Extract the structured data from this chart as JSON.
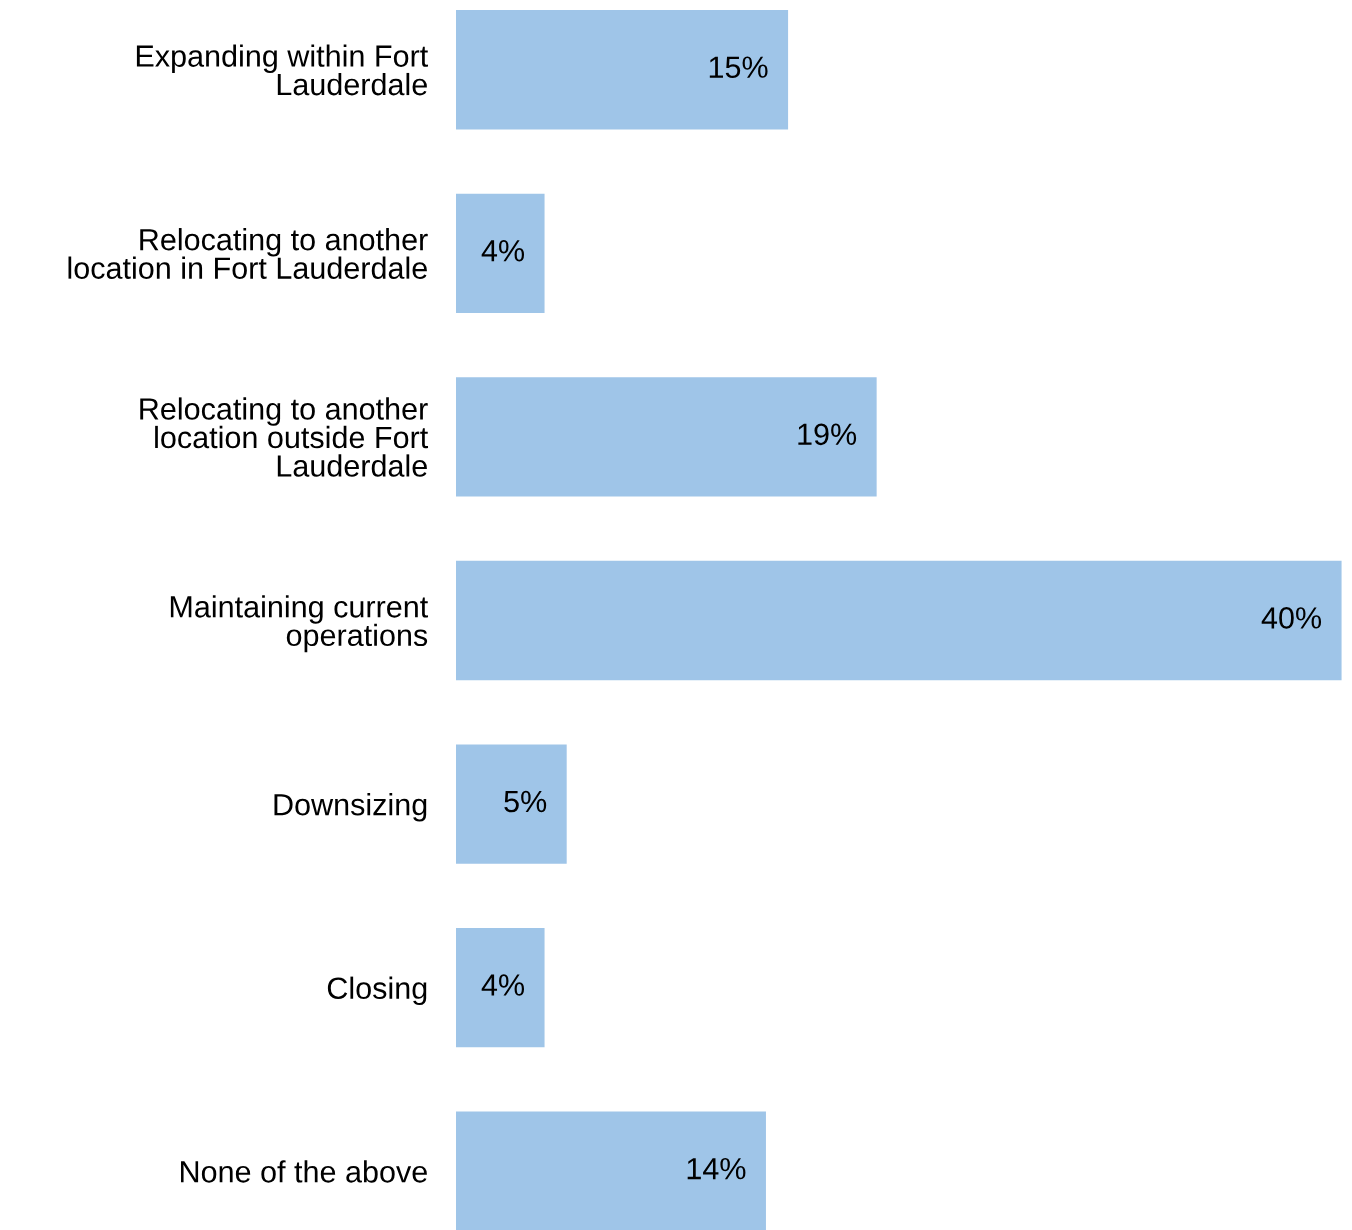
{
  "chart_data": {
    "type": "bar",
    "orientation": "horizontal",
    "categories": [
      "Expanding within Fort\nLauderdale",
      "Relocating to another\nlocation in Fort Lauderdale",
      "Relocating to another\nlocation outside Fort\nLauderdale",
      "Maintaining current\noperations",
      "Downsizing",
      "Closing",
      "None of the above"
    ],
    "values": [
      15,
      4,
      19,
      40,
      5,
      4,
      14
    ],
    "value_labels": [
      "15%",
      "4%",
      "19%",
      "40%",
      "5%",
      "4%",
      "14%"
    ],
    "color": "#9fc5e8",
    "grid": false,
    "legend": false
  }
}
